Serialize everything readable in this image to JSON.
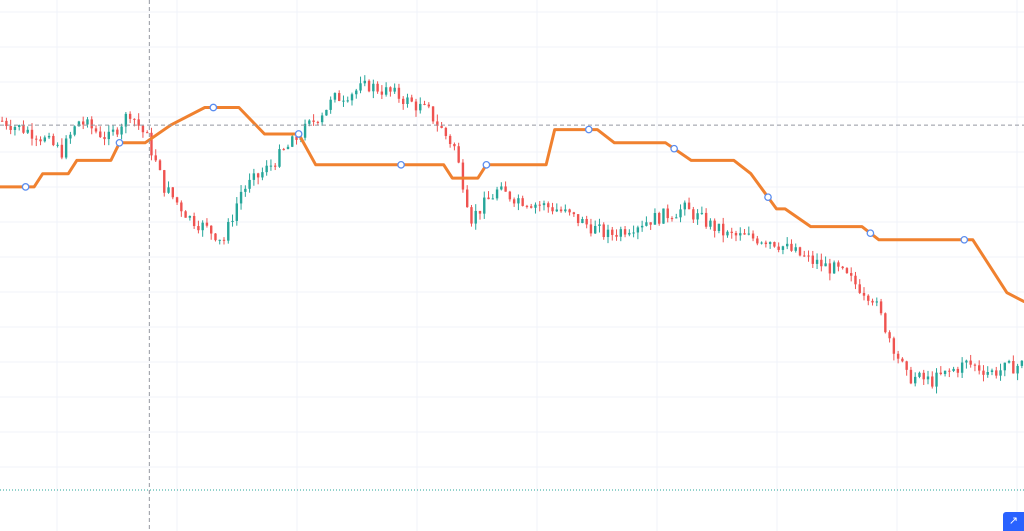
{
  "colors": {
    "background": "#ffffff",
    "grid": "#f0f3fa",
    "up_candle": "#26a69a",
    "down_candle": "#ef5350",
    "indicator_line": "#f0812f",
    "marker_stroke": "#5b8def",
    "crosshair": "#9598a1",
    "bottom_line": "#26a69a",
    "accent_button": "#2962ff"
  },
  "toolbar": {
    "scroll_button_icon": "arrow-icon",
    "scroll_button_glyph": "↗"
  },
  "chart_data": {
    "type": "candlestick",
    "title": "",
    "xlabel": "",
    "ylabel": "",
    "grid": true,
    "ylim": [
      0,
      100
    ],
    "xlim": [
      0,
      240
    ],
    "crosshair": {
      "x": 35,
      "y": 85
    },
    "series": [
      {
        "kind": "ohlc_path",
        "base": 86,
        "steps": [
          [
            0,
            86
          ],
          [
            8,
            83
          ],
          [
            14,
            79
          ],
          [
            18,
            86
          ],
          [
            25,
            82
          ],
          [
            30,
            88
          ],
          [
            34,
            82
          ],
          [
            38,
            71
          ],
          [
            44,
            64
          ],
          [
            52,
            59
          ],
          [
            56,
            70
          ],
          [
            62,
            75
          ],
          [
            70,
            83
          ],
          [
            78,
            91
          ],
          [
            86,
            94
          ],
          [
            92,
            92
          ],
          [
            100,
            88
          ],
          [
            106,
            80
          ],
          [
            110,
            64
          ],
          [
            116,
            70
          ],
          [
            122,
            68
          ],
          [
            130,
            66
          ],
          [
            136,
            63
          ],
          [
            142,
            60
          ],
          [
            150,
            63
          ],
          [
            160,
            66
          ],
          [
            170,
            60
          ],
          [
            180,
            59
          ],
          [
            190,
            54
          ],
          [
            196,
            52
          ],
          [
            204,
            46
          ],
          [
            212,
            28
          ],
          [
            218,
            27
          ],
          [
            226,
            31
          ],
          [
            232,
            29
          ],
          [
            240,
            31
          ]
        ]
      },
      {
        "kind": "step_line",
        "values": [
          [
            0,
            71
          ],
          [
            8,
            71
          ],
          [
            10,
            74
          ],
          [
            16,
            74
          ],
          [
            18,
            77
          ],
          [
            26,
            77
          ],
          [
            28,
            81
          ],
          [
            34,
            81
          ],
          [
            40,
            85
          ],
          [
            48,
            89
          ],
          [
            56,
            89
          ],
          [
            62,
            83
          ],
          [
            70,
            83
          ],
          [
            74,
            76
          ],
          [
            78,
            76
          ],
          [
            104,
            76
          ],
          [
            106,
            73
          ],
          [
            112,
            73
          ],
          [
            114,
            76
          ],
          [
            128,
            76
          ],
          [
            130,
            84
          ],
          [
            140,
            84
          ],
          [
            144,
            81
          ],
          [
            156,
            81
          ],
          [
            162,
            77
          ],
          [
            172,
            77
          ],
          [
            176,
            74
          ],
          [
            182,
            66
          ],
          [
            184,
            66
          ],
          [
            190,
            62
          ],
          [
            202,
            62
          ],
          [
            206,
            59
          ],
          [
            228,
            59
          ],
          [
            232,
            53
          ],
          [
            236,
            47
          ],
          [
            240,
            45
          ]
        ]
      },
      {
        "kind": "markers",
        "on": "step_line",
        "x": [
          6,
          28,
          50,
          70,
          94,
          114,
          138,
          158,
          180,
          204,
          226
        ]
      }
    ]
  }
}
